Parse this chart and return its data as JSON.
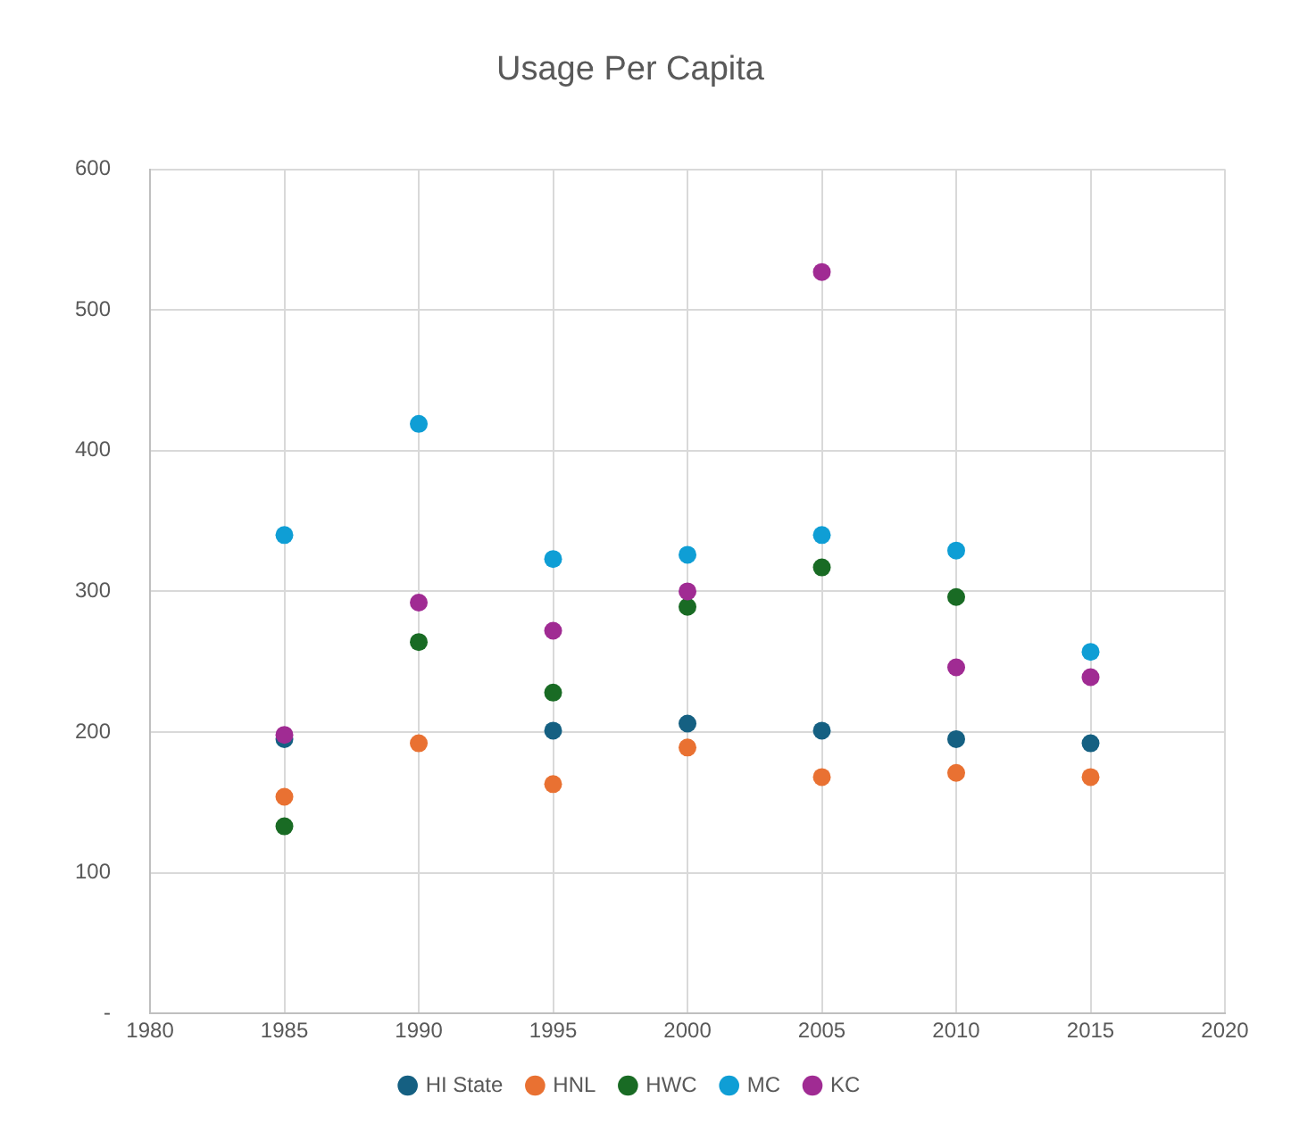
{
  "chart_data": {
    "type": "scatter",
    "title": "Usage Per Capita",
    "x": [
      1985,
      1990,
      1995,
      2000,
      2005,
      2010,
      2015
    ],
    "series": [
      {
        "name": "HI State",
        "color": "#156082",
        "values": [
          195,
          null,
          201,
          206,
          201,
          195,
          192
        ]
      },
      {
        "name": "HNL",
        "color": "#e97132",
        "values": [
          154,
          192,
          163,
          189,
          168,
          171,
          168
        ]
      },
      {
        "name": "HWC",
        "color": "#196b24",
        "values": [
          133,
          264,
          228,
          289,
          317,
          296,
          null
        ]
      },
      {
        "name": "MC",
        "color": "#0f9ed5",
        "values": [
          340,
          419,
          323,
          326,
          340,
          329,
          257
        ]
      },
      {
        "name": "KC",
        "color": "#a02b93",
        "values": [
          198,
          292,
          272,
          300,
          527,
          246,
          239
        ]
      }
    ],
    "xlim": [
      1980,
      2020
    ],
    "xticks": [
      1980,
      1985,
      1990,
      1995,
      2000,
      2005,
      2010,
      2015,
      2020
    ],
    "ylim": [
      0,
      600
    ],
    "yticks": [
      {
        "value": 0,
        "label": "-"
      },
      100,
      200,
      300,
      400,
      500,
      600
    ],
    "grid": true,
    "legend": "bottom",
    "marker": "circle"
  }
}
